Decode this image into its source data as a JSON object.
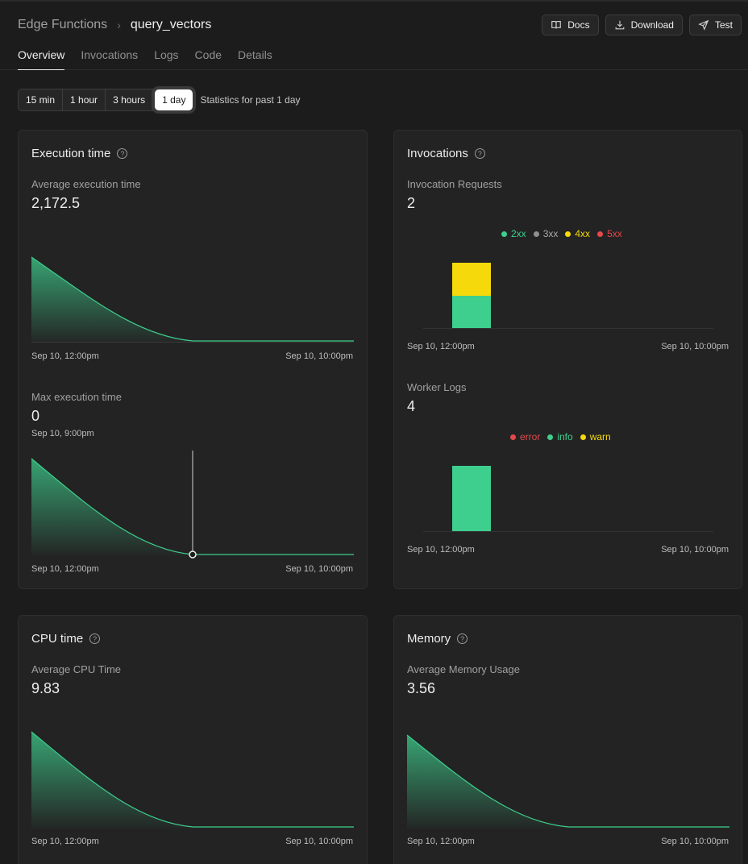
{
  "breadcrumb": {
    "parent": "Edge Functions",
    "current": "query_vectors"
  },
  "header_buttons": {
    "docs": "Docs",
    "download": "Download",
    "test": "Test"
  },
  "tabs": [
    "Overview",
    "Invocations",
    "Logs",
    "Code",
    "Details"
  ],
  "active_tab": "Overview",
  "time_range": {
    "options": [
      "15 min",
      "1 hour",
      "3 hours",
      "1 day"
    ],
    "selected": "1 day",
    "label": "Statistics for past 1 day"
  },
  "colors": {
    "accent": "#3ecf8e",
    "warn": "#f5d90a",
    "error": "#e5484d",
    "grey": "#8f8f8f"
  },
  "execution_time": {
    "title": "Execution time",
    "avg_label": "Average execution time",
    "avg_value": "2,172.5",
    "avg_axis": {
      "start": "Sep 10, 12:00pm",
      "end": "Sep 10, 10:00pm"
    },
    "max_label": "Max execution time",
    "max_value": "0",
    "max_hover_time": "Sep 10, 9:00pm",
    "max_axis": {
      "start": "Sep 10, 12:00pm",
      "end": "Sep 10, 10:00pm"
    }
  },
  "invocations": {
    "title": "Invocations",
    "requests_label": "Invocation Requests",
    "requests_value": "2",
    "requests_legend": [
      {
        "name": "2xx",
        "color": "#3ecf8e"
      },
      {
        "name": "3xx",
        "color": "#8f8f8f"
      },
      {
        "name": "4xx",
        "color": "#f5d90a"
      },
      {
        "name": "5xx",
        "color": "#e5484d"
      }
    ],
    "requests_axis": {
      "start": "Sep 10, 12:00pm",
      "end": "Sep 10, 10:00pm"
    },
    "logs_label": "Worker Logs",
    "logs_value": "4",
    "logs_legend": [
      {
        "name": "error",
        "color": "#e5484d"
      },
      {
        "name": "info",
        "color": "#3ecf8e"
      },
      {
        "name": "warn",
        "color": "#f5d90a"
      }
    ],
    "logs_axis": {
      "start": "Sep 10, 12:00pm",
      "end": "Sep 10, 10:00pm"
    }
  },
  "cpu_time": {
    "title": "CPU time",
    "avg_label": "Average CPU Time",
    "avg_value": "9.83",
    "axis": {
      "start": "Sep 10, 12:00pm",
      "end": "Sep 10, 10:00pm"
    }
  },
  "memory": {
    "title": "Memory",
    "avg_label": "Average Memory Usage",
    "avg_value": "3.56",
    "axis": {
      "start": "Sep 10, 12:00pm",
      "end": "Sep 10, 10:00pm"
    }
  }
}
